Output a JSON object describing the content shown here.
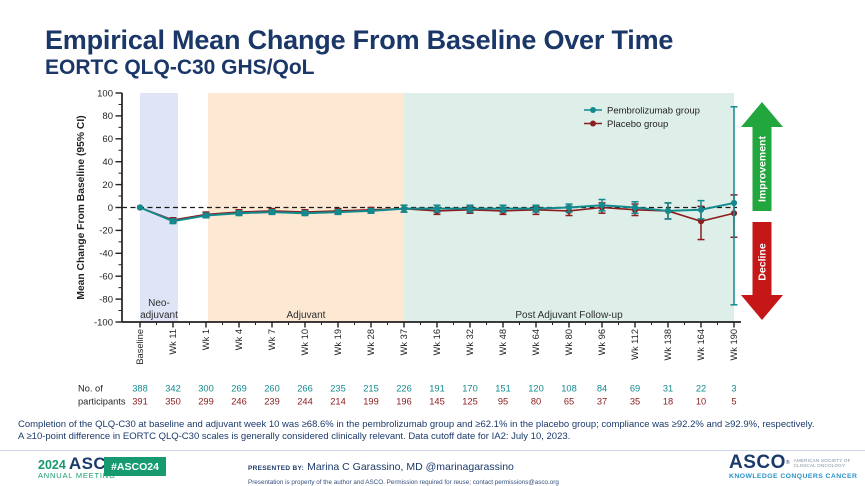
{
  "slide": {
    "title": "Empirical Mean Change From Baseline Over Time",
    "subtitle": "EORTC QLQ-C30 GHS/QoL"
  },
  "chart_data": {
    "type": "line",
    "title": "",
    "xlabel": "",
    "ylabel": "Mean Change From Baseline (95% CI)",
    "ylim": [
      -100,
      100
    ],
    "ytick_step": 20,
    "zero_reference_line": true,
    "legend_position": "top-right",
    "categories": [
      "Baseline",
      "Wk 11",
      "Wk 1",
      "Wk 4",
      "Wk 7",
      "Wk 10",
      "Wk 19",
      "Wk 28",
      "Wk 37",
      "Wk 16",
      "Wk 32",
      "Wk 48",
      "Wk 64",
      "Wk 80",
      "Wk 96",
      "Wk 112",
      "Wk 138",
      "Wk 164",
      "Wk 190"
    ],
    "series": [
      {
        "key": "placebo",
        "name": "Placebo group",
        "color": "#8b1e20",
        "values": [
          0,
          -11,
          -6,
          -4,
          -3,
          -4,
          -3,
          -2,
          -1,
          -3,
          -2,
          -3,
          -2,
          -3,
          0,
          -2,
          -3,
          -12,
          -5
        ],
        "ci_low": [
          0,
          -13,
          -8,
          -6,
          -5,
          -6,
          -5,
          -4,
          -4,
          -6,
          -5,
          -6,
          -6,
          -7,
          -5,
          -7,
          -10,
          -28,
          -26
        ],
        "ci_high": [
          0,
          -9,
          -4,
          -2,
          -1,
          -2,
          -1,
          0,
          2,
          0,
          1,
          0,
          1,
          1,
          4,
          3,
          4,
          1,
          11
        ]
      },
      {
        "key": "pembrolizumab",
        "name": "Pembrolizumab group",
        "color": "#128a8e",
        "values": [
          0,
          -12,
          -7,
          -5,
          -4,
          -5,
          -4,
          -3,
          -1,
          -1,
          -1,
          -1,
          -1,
          0,
          2,
          0,
          -3,
          -2,
          4
        ],
        "ci_low": [
          0,
          -14,
          -9,
          -7,
          -6,
          -7,
          -6,
          -5,
          -4,
          -4,
          -4,
          -4,
          -4,
          -4,
          -3,
          -5,
          -10,
          -10,
          -85
        ],
        "ci_high": [
          0,
          -10,
          -5,
          -3,
          -2,
          -3,
          -2,
          -1,
          2,
          2,
          2,
          2,
          2,
          3,
          7,
          5,
          4,
          6,
          88
        ]
      }
    ],
    "phases": [
      {
        "key": "neo-adjuvant",
        "label_lines": [
          "Neo-",
          "adjuvant"
        ],
        "color": "#dfe5f6",
        "from": 0.0,
        "to": 1.15
      },
      {
        "key": "adjuvant",
        "label_lines": [
          "Adjuvant"
        ],
        "color": "#fce8d3",
        "from": 2.06,
        "to": 8.0
      },
      {
        "key": "post-adjuvant-follow-up",
        "label_lines": [
          "Post Adjuvant Follow-up"
        ],
        "color": "#ddefe8",
        "from": 8.0,
        "to": 18.0
      }
    ]
  },
  "annotations": {
    "improvement": {
      "label": "Improvement",
      "color": "#22a63e"
    },
    "decline": {
      "label": "Decline",
      "color": "#c51718"
    }
  },
  "participants": {
    "label_lines": [
      "No. of",
      "participants"
    ],
    "groups": [
      {
        "key": "pembrolizumab",
        "color": "#128a8e",
        "values": [
          388,
          342,
          300,
          269,
          260,
          266,
          235,
          215,
          226,
          191,
          170,
          151,
          120,
          108,
          84,
          69,
          31,
          22,
          3
        ]
      },
      {
        "key": "placebo",
        "color": "#8b1e20",
        "values": [
          391,
          350,
          299,
          246,
          239,
          244,
          214,
          199,
          196,
          145,
          125,
          95,
          80,
          65,
          37,
          35,
          18,
          10,
          5
        ]
      }
    ]
  },
  "footnote": {
    "line1": "Completion of the QLQ-C30 at baseline and adjuvant week 10 was ≥68.6% in the pembrolizumab group and ≥62.1% in the placebo group; compliance was ≥92.2% and ≥92.9%, respectively.",
    "line2": "A ≥10-point difference in EORTC QLQ-C30 scales is generally considered clinically relevant. Data cutoff date for IA2: July 10, 2023."
  },
  "footer": {
    "meeting_logo": {
      "year": "2024",
      "org": "ASCO",
      "mark": "®",
      "meeting": "ANNUAL MEETING"
    },
    "hashtag": "#ASCO24",
    "presented_by_label": "PRESENTED BY:",
    "presenter": "Marina C Garassino, MD @marinagarassino",
    "permission": "Presentation is property of the author and ASCO. Permission required for reuse; contact permissions@asco.org",
    "asco_logo": {
      "org": "ASCO",
      "mark": "®",
      "society_line1": "AMERICAN SOCIETY OF",
      "society_line2": "CLINICAL ONCOLOGY",
      "tagline": "KNOWLEDGE CONQUERS CANCER"
    }
  }
}
